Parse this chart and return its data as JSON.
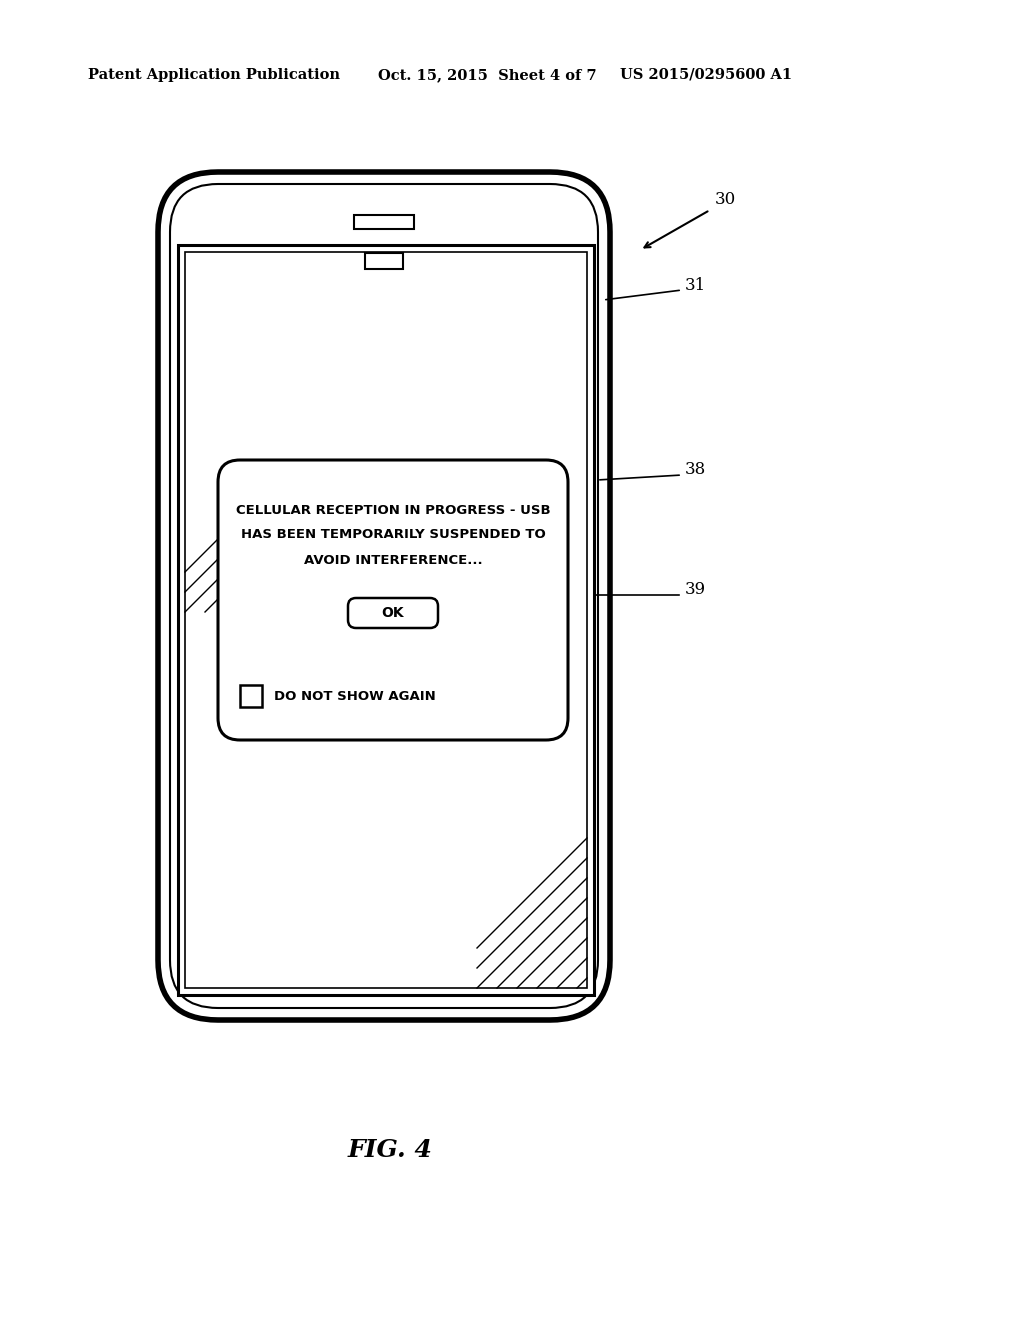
{
  "bg_color": "#ffffff",
  "header_text1": "Patent Application Publication",
  "header_text2": "Oct. 15, 2015  Sheet 4 of 7",
  "header_text3": "US 2015/0295600 A1",
  "fig_label": "FIG. 4",
  "label_30": "30",
  "label_31": "31",
  "label_38": "38",
  "label_39": "39",
  "dialog_line1": "CELLULAR RECEPTION IN PROGRESS - USB",
  "dialog_line2": "HAS BEEN TEMPORARILY SUSPENDED TO",
  "dialog_line3": "AVOID INTERFERENCE...",
  "ok_label": "OK",
  "checkbox_label": "DO NOT SHOW AGAIN"
}
